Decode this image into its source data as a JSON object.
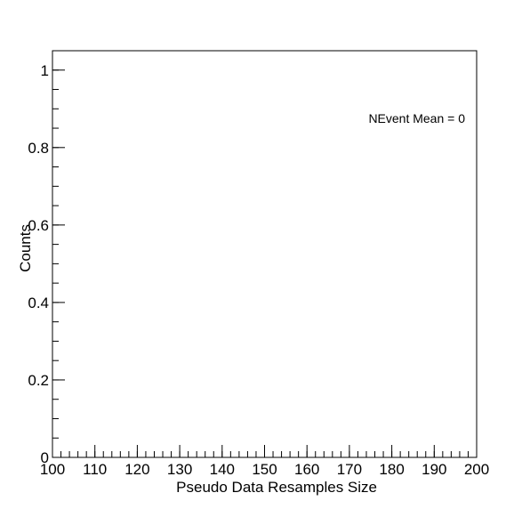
{
  "chart_data": {
    "type": "bar",
    "title": "",
    "xlabel": "Pseudo Data Resamples Size",
    "ylabel": "Counts",
    "xlim": [
      100,
      200
    ],
    "ylim": [
      0,
      1.05
    ],
    "x": [],
    "values": [],
    "x_ticks": [
      {
        "value": 100,
        "label": "100"
      },
      {
        "value": 110,
        "label": "110"
      },
      {
        "value": 120,
        "label": "120"
      },
      {
        "value": 130,
        "label": "130"
      },
      {
        "value": 140,
        "label": "140"
      },
      {
        "value": 150,
        "label": "150"
      },
      {
        "value": 160,
        "label": "160"
      },
      {
        "value": 170,
        "label": "170"
      },
      {
        "value": 180,
        "label": "180"
      },
      {
        "value": 190,
        "label": "190"
      },
      {
        "value": 200,
        "label": "200"
      }
    ],
    "x_minor_step": 2,
    "y_ticks": [
      {
        "value": 0,
        "label": "0"
      },
      {
        "value": 0.2,
        "label": "0.2"
      },
      {
        "value": 0.4,
        "label": "0.4"
      },
      {
        "value": 0.6,
        "label": "0.6"
      },
      {
        "value": 0.8,
        "label": "0.8"
      },
      {
        "value": 1,
        "label": "1"
      }
    ],
    "y_minor_step": 0.05,
    "grid": false,
    "annotation": "NEvent Mean = 0"
  }
}
